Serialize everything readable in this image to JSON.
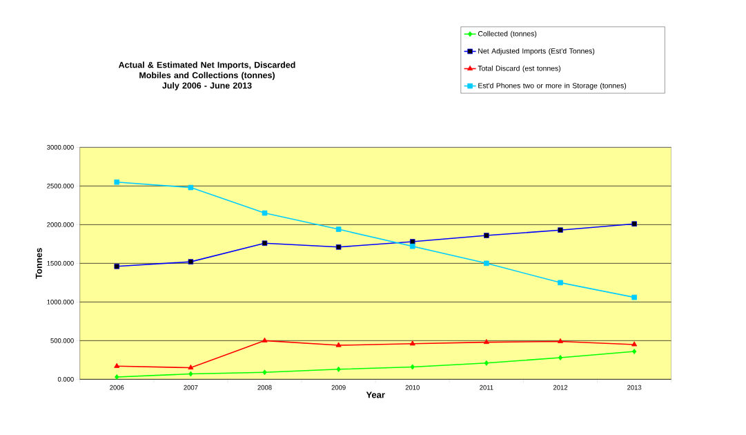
{
  "chart_data": {
    "type": "line",
    "title": "Actual & Estimated Net Imports, Discarded Mobiles and Collections (tonnes)",
    "subtitle": "July 2006 -  June 2013",
    "xlabel": "Year",
    "ylabel": "Tonnes",
    "categories": [
      "2006",
      "2007",
      "2008",
      "2009",
      "2010",
      "2011",
      "2012",
      "2013"
    ],
    "series": [
      {
        "name": "Collected (tonnes)",
        "color": "#00ff00",
        "marker": "diamond",
        "values": [
          30,
          70,
          90,
          130,
          160,
          210,
          280,
          360
        ]
      },
      {
        "name": "Net Adjusted Imports (Est'd Tonnes)",
        "color": "#0000ff",
        "marker": "square",
        "values": [
          1460,
          1520,
          1760,
          1710,
          1780,
          1860,
          1930,
          2010
        ]
      },
      {
        "name": "Total Discard (est tonnes)",
        "color": "#ff0000",
        "marker": "triangle",
        "values": [
          170,
          150,
          500,
          440,
          460,
          480,
          490,
          450
        ]
      },
      {
        "name": "Est'd Phones two or more in Storage (tonnes)",
        "color": "#00ccff",
        "marker": "square",
        "values": [
          2550,
          2480,
          2150,
          1940,
          1720,
          1500,
          1250,
          1060
        ]
      }
    ],
    "ylim": [
      0,
      3000
    ],
    "yticks": [
      {
        "value": 0,
        "label": "0.000"
      },
      {
        "value": 500,
        "label": "500.000"
      },
      {
        "value": 1000,
        "label": "1000.000"
      },
      {
        "value": 1500,
        "label": "1500.000"
      },
      {
        "value": 2000,
        "label": "2000.000"
      },
      {
        "value": 2500,
        "label": "2500.000"
      },
      {
        "value": 3000,
        "label": "3000.000"
      }
    ],
    "grid": "y",
    "legend": "top right",
    "line_style": "solid"
  }
}
